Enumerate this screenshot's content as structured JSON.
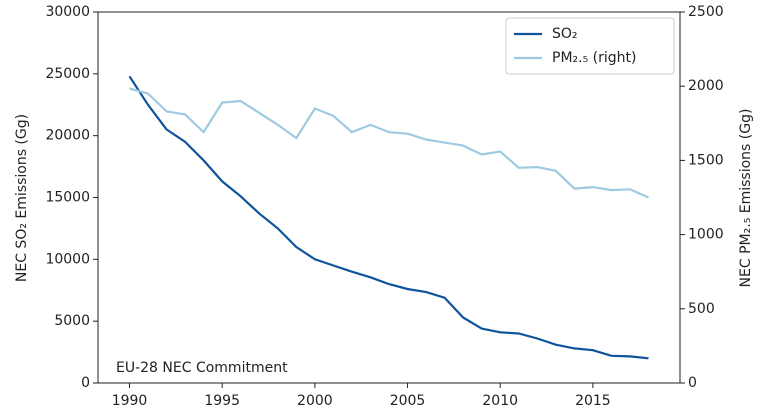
{
  "chart_data": {
    "type": "line",
    "x": [
      1990,
      1991,
      1992,
      1993,
      1994,
      1995,
      1996,
      1997,
      1998,
      1999,
      2000,
      2001,
      2002,
      2003,
      2004,
      2005,
      2006,
      2007,
      2008,
      2009,
      2010,
      2011,
      2012,
      2013,
      2014,
      2015,
      2016,
      2017,
      2018
    ],
    "series": [
      {
        "name": "SO₂",
        "color": "#0f539c",
        "values": [
          24800,
          22500,
          20500,
          19500,
          18000,
          16300,
          15100,
          13700,
          12500,
          11000,
          10000,
          9500,
          9000,
          8550,
          8000,
          7600,
          7350,
          6900,
          5300,
          4400,
          4100,
          4000,
          3600,
          3100,
          2800,
          2650,
          2200,
          2150,
          2000
        ]
      },
      {
        "name": "PM₂.₅ (right)",
        "color": "#9ecae1",
        "axis": "y2",
        "values": [
          1985,
          1950,
          1830,
          1810,
          1690,
          1890,
          1900,
          1820,
          1740,
          1650,
          1850,
          1800,
          1690,
          1740,
          1690,
          1680,
          1640,
          1620,
          1600,
          1540,
          1560,
          1450,
          1455,
          1430,
          1310,
          1320,
          1300,
          1305,
          1250
        ]
      }
    ],
    "ylabel": "NEC SO₂ Emissions (Gg)",
    "y2label": "NEC PM₂.₅ Emissions (Gg)",
    "annotation": "EU-28 NEC Commitment",
    "xlim": [
      1988.3,
      2019.7
    ],
    "xticks": [
      1990,
      1995,
      2000,
      2005,
      2010,
      2015
    ],
    "ylim": [
      0,
      30000
    ],
    "yticks": [
      0,
      5000,
      10000,
      15000,
      20000,
      25000,
      30000
    ],
    "y2lim": [
      0,
      2500
    ],
    "y2ticks": [
      0,
      500,
      1000,
      1500,
      2000,
      2500
    ],
    "legend": "upper right",
    "grid": false
  }
}
